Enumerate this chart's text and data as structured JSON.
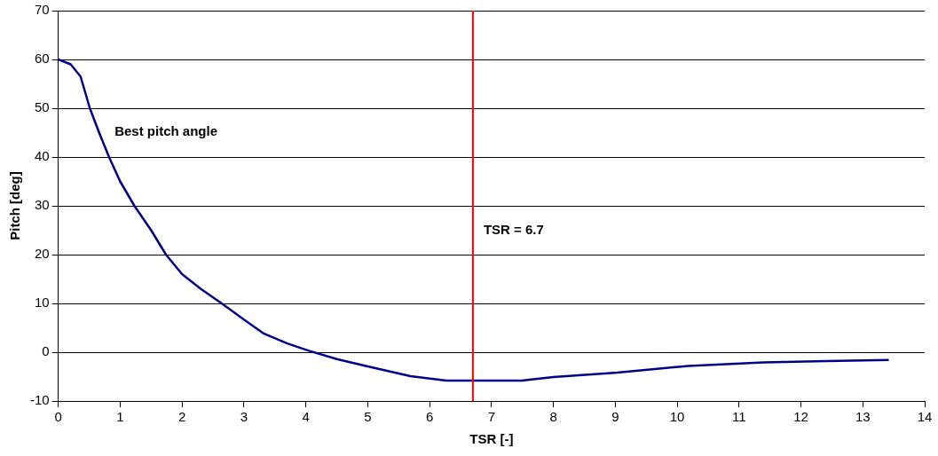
{
  "chart_data": {
    "type": "line",
    "xlabel": "TSR [-]",
    "ylabel": "Pitch [deg]",
    "x": [
      0,
      0.2,
      0.36,
      0.51,
      0.66,
      0.82,
      1.0,
      1.23,
      1.5,
      1.74,
      2.0,
      2.3,
      2.64,
      3.0,
      3.31,
      3.7,
      4.05,
      4.5,
      5.0,
      5.69,
      6.27,
      6.7,
      7.49,
      8.0,
      9.03,
      10.18,
      11.4,
      12.4,
      13.42
    ],
    "series": [
      {
        "color": "#00008b",
        "values": [
          60,
          59,
          56.5,
          50,
          45,
          40,
          35,
          30,
          25,
          20,
          16,
          13,
          10,
          6.7,
          3.9,
          1.8,
          0.3,
          -1.4,
          -2.9,
          -4.9,
          -5.8,
          -5.8,
          -5.8,
          -5.1,
          -4.2,
          -2.8,
          -2.1,
          -1.8,
          -1.6
        ]
      }
    ],
    "xlim": [
      0,
      14
    ],
    "xticks": [
      0,
      1,
      2,
      3,
      4,
      5,
      6,
      7,
      8,
      9,
      10,
      11,
      12,
      13,
      14
    ],
    "ylim": [
      -10,
      70
    ],
    "yticks": [
      -10,
      0,
      10,
      20,
      30,
      40,
      50,
      60,
      70
    ],
    "grid": "y",
    "marker": "none",
    "line_style": "solid",
    "legend": false,
    "ref_lines": [
      {
        "axis": "x",
        "value": 6.7,
        "label": "TSR = 6.7",
        "color": "#ff0000"
      }
    ],
    "annotations": [
      "Best pitch angle"
    ]
  }
}
